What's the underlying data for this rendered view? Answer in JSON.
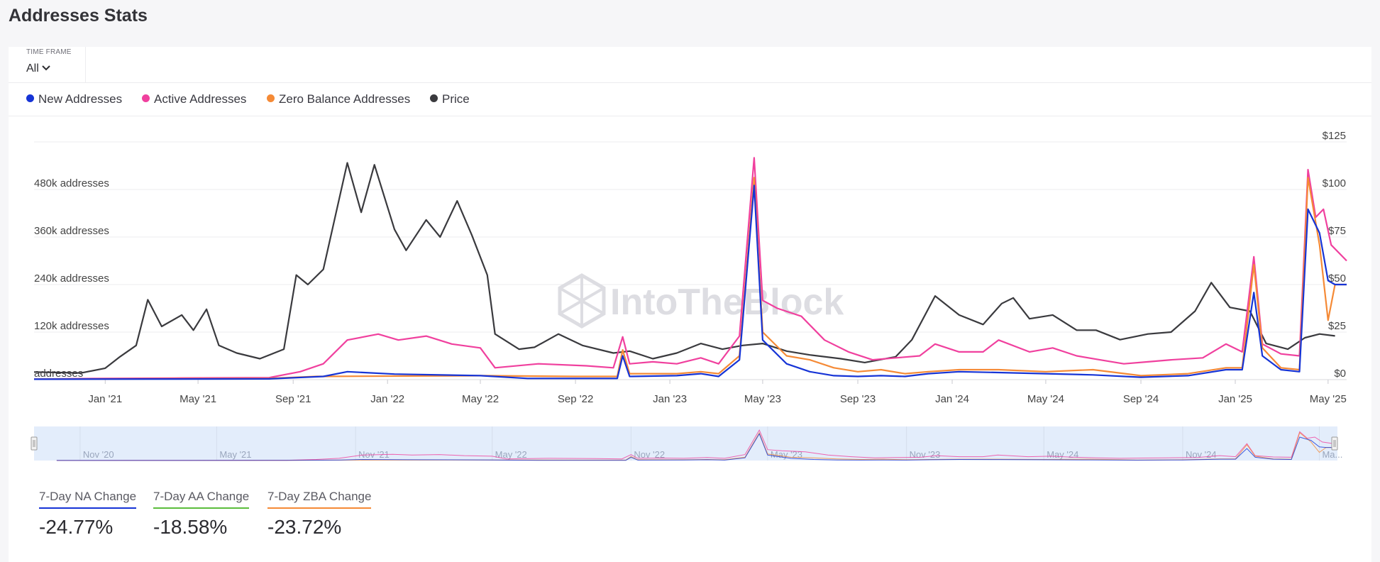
{
  "page": {
    "title": "Addresses Stats"
  },
  "timeframe": {
    "label": "TIME FRAME",
    "value": "All"
  },
  "legend": [
    {
      "label": "New Addresses",
      "color": "#1634d6"
    },
    {
      "label": "Active Addresses",
      "color": "#f0409e"
    },
    {
      "label": "Zero Balance Addresses",
      "color": "#f58a36"
    },
    {
      "label": "Price",
      "color": "#3a3a3e"
    }
  ],
  "watermark": "IntoTheBlock",
  "navigator": {
    "labels": [
      "Nov '20",
      "May '21",
      "Nov '21",
      "May '22",
      "Nov '22",
      "May '23",
      "Nov '23",
      "May '24",
      "Nov '24",
      "Ma..."
    ]
  },
  "stats": [
    {
      "label": "7-Day NA Change",
      "value": "-24.77%",
      "color": "#1634d6"
    },
    {
      "label": "7-Day AA Change",
      "value": "-18.58%",
      "color": "#5bbd3c"
    },
    {
      "label": "7-Day ZBA Change",
      "value": "-23.72%",
      "color": "#f58a36"
    }
  ],
  "chart_data": {
    "type": "line",
    "y_left": {
      "ticks": [
        "addresses",
        "120k addresses",
        "240k addresses",
        "360k addresses",
        "480k addresses"
      ],
      "values": [
        0,
        120000,
        240000,
        360000,
        480000
      ],
      "range": [
        0,
        600000
      ]
    },
    "y_right": {
      "ticks": [
        "$0",
        "$25",
        "$50",
        "$75",
        "$100",
        "$125"
      ],
      "values": [
        0,
        25,
        50,
        75,
        100,
        125
      ],
      "range": [
        0,
        125
      ]
    },
    "x_ticks": [
      "Jan '21",
      "May '21",
      "Sep '21",
      "Jan '22",
      "May '22",
      "Sep '22",
      "Jan '23",
      "May '23",
      "Sep '23",
      "Jan '24",
      "May '24",
      "Sep '24",
      "Jan '25",
      "May '25"
    ],
    "x_range": [
      "2020-10-01",
      "2025-05-25"
    ],
    "series": [
      {
        "name": "Price",
        "color": "#3a3a3e",
        "axis": "right",
        "points": [
          [
            "2020-10-01",
            4
          ],
          [
            "2020-12-01",
            3.5
          ],
          [
            "2021-01-01",
            6
          ],
          [
            "2021-01-20",
            12
          ],
          [
            "2021-02-10",
            18
          ],
          [
            "2021-02-25",
            42
          ],
          [
            "2021-03-15",
            28
          ],
          [
            "2021-04-10",
            34
          ],
          [
            "2021-04-25",
            26
          ],
          [
            "2021-05-12",
            37
          ],
          [
            "2021-05-28",
            18
          ],
          [
            "2021-06-20",
            14
          ],
          [
            "2021-07-20",
            11
          ],
          [
            "2021-08-20",
            16
          ],
          [
            "2021-09-05",
            55
          ],
          [
            "2021-09-20",
            50
          ],
          [
            "2021-10-10",
            58
          ],
          [
            "2021-11-10",
            114
          ],
          [
            "2021-11-28",
            88
          ],
          [
            "2021-12-15",
            113
          ],
          [
            "2022-01-10",
            79
          ],
          [
            "2022-01-25",
            68
          ],
          [
            "2022-02-20",
            84
          ],
          [
            "2022-03-10",
            75
          ],
          [
            "2022-04-01",
            94
          ],
          [
            "2022-04-20",
            76
          ],
          [
            "2022-05-10",
            55
          ],
          [
            "2022-05-20",
            24
          ],
          [
            "2022-06-20",
            16
          ],
          [
            "2022-07-10",
            17
          ],
          [
            "2022-08-10",
            24
          ],
          [
            "2022-09-10",
            18
          ],
          [
            "2022-10-20",
            14
          ],
          [
            "2022-11-10",
            15
          ],
          [
            "2022-12-10",
            11
          ],
          [
            "2023-01-10",
            14
          ],
          [
            "2023-02-10",
            19
          ],
          [
            "2023-03-10",
            16
          ],
          [
            "2023-04-05",
            18
          ],
          [
            "2023-05-01",
            19
          ],
          [
            "2023-06-01",
            15
          ],
          [
            "2023-07-01",
            13
          ],
          [
            "2023-08-10",
            11
          ],
          [
            "2023-09-10",
            9
          ],
          [
            "2023-10-20",
            12
          ],
          [
            "2023-11-10",
            21
          ],
          [
            "2023-12-10",
            44
          ],
          [
            "2024-01-10",
            34
          ],
          [
            "2024-02-10",
            29
          ],
          [
            "2024-03-05",
            40
          ],
          [
            "2024-03-20",
            43
          ],
          [
            "2024-04-10",
            32
          ],
          [
            "2024-05-10",
            34
          ],
          [
            "2024-06-10",
            26
          ],
          [
            "2024-07-05",
            26
          ],
          [
            "2024-08-05",
            21
          ],
          [
            "2024-09-10",
            24
          ],
          [
            "2024-10-10",
            25
          ],
          [
            "2024-11-10",
            36
          ],
          [
            "2024-12-01",
            51
          ],
          [
            "2024-12-25",
            38
          ],
          [
            "2025-01-20",
            36
          ],
          [
            "2025-02-10",
            19
          ],
          [
            "2025-03-10",
            16
          ],
          [
            "2025-04-01",
            22
          ],
          [
            "2025-04-20",
            24
          ],
          [
            "2025-05-10",
            23
          ]
        ]
      },
      {
        "name": "Active Addresses",
        "color": "#f0409e",
        "axis": "left",
        "points": [
          [
            "2020-10-01",
            1000
          ],
          [
            "2021-01-01",
            3000
          ],
          [
            "2021-04-01",
            4000
          ],
          [
            "2021-08-01",
            5000
          ],
          [
            "2021-09-10",
            20000
          ],
          [
            "2021-10-10",
            40000
          ],
          [
            "2021-11-10",
            100000
          ],
          [
            "2021-12-20",
            115000
          ],
          [
            "2022-01-15",
            100000
          ],
          [
            "2022-02-20",
            110000
          ],
          [
            "2022-03-25",
            90000
          ],
          [
            "2022-05-01",
            80000
          ],
          [
            "2022-05-20",
            30000
          ],
          [
            "2022-07-15",
            40000
          ],
          [
            "2022-09-15",
            35000
          ],
          [
            "2022-10-20",
            30000
          ],
          [
            "2022-11-01",
            108000
          ],
          [
            "2022-11-10",
            40000
          ],
          [
            "2022-12-10",
            45000
          ],
          [
            "2023-01-10",
            40000
          ],
          [
            "2023-02-10",
            55000
          ],
          [
            "2023-03-05",
            40000
          ],
          [
            "2023-04-01",
            110000
          ],
          [
            "2023-04-20",
            560000
          ],
          [
            "2023-05-01",
            200000
          ],
          [
            "2023-05-20",
            180000
          ],
          [
            "2023-06-20",
            160000
          ],
          [
            "2023-07-20",
            100000
          ],
          [
            "2023-08-20",
            70000
          ],
          [
            "2023-09-20",
            50000
          ],
          [
            "2023-10-20",
            55000
          ],
          [
            "2023-11-20",
            60000
          ],
          [
            "2023-12-10",
            90000
          ],
          [
            "2024-01-10",
            70000
          ],
          [
            "2024-02-10",
            70000
          ],
          [
            "2024-03-01",
            100000
          ],
          [
            "2024-04-10",
            70000
          ],
          [
            "2024-05-10",
            80000
          ],
          [
            "2024-06-10",
            60000
          ],
          [
            "2024-07-10",
            50000
          ],
          [
            "2024-08-10",
            40000
          ],
          [
            "2024-09-10",
            45000
          ],
          [
            "2024-10-10",
            50000
          ],
          [
            "2024-11-20",
            55000
          ],
          [
            "2024-12-20",
            90000
          ],
          [
            "2025-01-10",
            70000
          ],
          [
            "2025-01-25",
            310000
          ],
          [
            "2025-02-05",
            90000
          ],
          [
            "2025-03-01",
            65000
          ],
          [
            "2025-03-25",
            60000
          ],
          [
            "2025-04-05",
            530000
          ],
          [
            "2025-04-15",
            410000
          ],
          [
            "2025-04-25",
            430000
          ],
          [
            "2025-05-05",
            340000
          ],
          [
            "2025-05-25",
            300000
          ]
        ]
      },
      {
        "name": "Zero Balance Addresses",
        "color": "#f58a36",
        "axis": "left",
        "points": [
          [
            "2020-10-01",
            1000
          ],
          [
            "2021-08-01",
            3000
          ],
          [
            "2021-10-01",
            8000
          ],
          [
            "2022-05-01",
            10000
          ],
          [
            "2022-09-01",
            8000
          ],
          [
            "2022-10-25",
            8000
          ],
          [
            "2022-11-01",
            75000
          ],
          [
            "2022-11-10",
            15000
          ],
          [
            "2023-01-10",
            15000
          ],
          [
            "2023-02-10",
            20000
          ],
          [
            "2023-03-05",
            15000
          ],
          [
            "2023-04-01",
            60000
          ],
          [
            "2023-04-20",
            510000
          ],
          [
            "2023-05-01",
            120000
          ],
          [
            "2023-06-01",
            60000
          ],
          [
            "2023-07-01",
            50000
          ],
          [
            "2023-08-01",
            30000
          ],
          [
            "2023-09-01",
            20000
          ],
          [
            "2023-10-01",
            25000
          ],
          [
            "2023-11-01",
            15000
          ],
          [
            "2023-12-01",
            20000
          ],
          [
            "2024-01-10",
            25000
          ],
          [
            "2024-03-01",
            25000
          ],
          [
            "2024-05-01",
            20000
          ],
          [
            "2024-07-01",
            25000
          ],
          [
            "2024-09-01",
            10000
          ],
          [
            "2024-11-01",
            15000
          ],
          [
            "2024-12-20",
            30000
          ],
          [
            "2025-01-10",
            30000
          ],
          [
            "2025-01-25",
            290000
          ],
          [
            "2025-02-05",
            80000
          ],
          [
            "2025-03-01",
            30000
          ],
          [
            "2025-03-25",
            25000
          ],
          [
            "2025-04-05",
            510000
          ],
          [
            "2025-04-20",
            340000
          ],
          [
            "2025-05-01",
            150000
          ],
          [
            "2025-05-10",
            240000
          ],
          [
            "2025-05-25",
            240000
          ]
        ]
      },
      {
        "name": "New Addresses",
        "color": "#1634d6",
        "axis": "left",
        "points": [
          [
            "2020-10-01",
            1000
          ],
          [
            "2021-08-01",
            2000
          ],
          [
            "2021-10-10",
            8000
          ],
          [
            "2021-11-10",
            20000
          ],
          [
            "2022-01-10",
            14000
          ],
          [
            "2022-05-01",
            10000
          ],
          [
            "2022-07-01",
            3000
          ],
          [
            "2022-10-25",
            3000
          ],
          [
            "2022-11-01",
            60000
          ],
          [
            "2022-11-10",
            8000
          ],
          [
            "2023-01-10",
            10000
          ],
          [
            "2023-02-10",
            15000
          ],
          [
            "2023-03-05",
            8000
          ],
          [
            "2023-04-01",
            50000
          ],
          [
            "2023-04-20",
            490000
          ],
          [
            "2023-05-01",
            100000
          ],
          [
            "2023-06-01",
            40000
          ],
          [
            "2023-07-01",
            20000
          ],
          [
            "2023-08-01",
            10000
          ],
          [
            "2023-09-01",
            8000
          ],
          [
            "2023-10-01",
            10000
          ],
          [
            "2023-11-01",
            8000
          ],
          [
            "2023-12-01",
            15000
          ],
          [
            "2024-01-10",
            20000
          ],
          [
            "2024-03-01",
            18000
          ],
          [
            "2024-05-01",
            15000
          ],
          [
            "2024-07-01",
            12000
          ],
          [
            "2024-09-01",
            6000
          ],
          [
            "2024-11-01",
            10000
          ],
          [
            "2024-12-20",
            25000
          ],
          [
            "2025-01-10",
            25000
          ],
          [
            "2025-01-25",
            220000
          ],
          [
            "2025-02-05",
            60000
          ],
          [
            "2025-03-01",
            25000
          ],
          [
            "2025-03-25",
            20000
          ],
          [
            "2025-04-05",
            430000
          ],
          [
            "2025-04-20",
            370000
          ],
          [
            "2025-05-01",
            250000
          ],
          [
            "2025-05-10",
            240000
          ],
          [
            "2025-05-25",
            240000
          ]
        ]
      }
    ]
  }
}
